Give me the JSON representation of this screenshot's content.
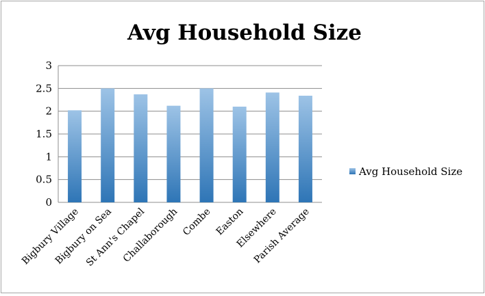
{
  "chart_data": {
    "type": "bar",
    "title": "Avg Household Size",
    "xlabel": "",
    "ylabel": "",
    "categories": [
      "Bigbury Village",
      "Bigbury on Sea",
      "St Ann's Chapel",
      "Challaborough",
      "Combe",
      "Easton",
      "Elsewhere",
      "Parish Average"
    ],
    "series": [
      {
        "name": "Avg Household Size",
        "values": [
          2.02,
          2.5,
          2.37,
          2.12,
          2.5,
          2.1,
          2.41,
          2.34
        ]
      }
    ],
    "ylim": [
      0,
      3
    ],
    "yticks": [
      "0",
      "0.5",
      "1",
      "1.5",
      "2",
      "2.5",
      "3"
    ],
    "grid": true,
    "legend_position": "right",
    "colors": {
      "bar_top": "#9dc3e6",
      "bar_bottom": "#2e75b6",
      "grid": "#8c8c8c",
      "frame": "#a6a6a6"
    }
  }
}
